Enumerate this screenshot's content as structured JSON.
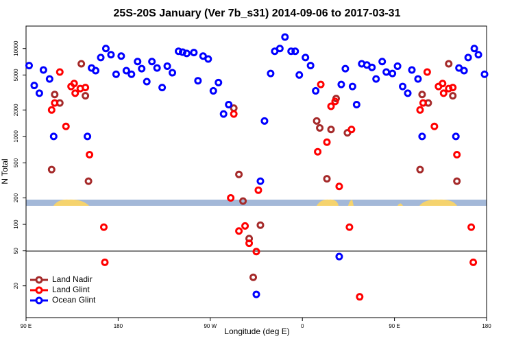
{
  "chart_data": {
    "type": "scatter",
    "title": "25S-20S January (Ver 7b_s31)   2014-09-06 to 2017-03-31",
    "x_label": "Longitude (deg E)",
    "y_label": "N Total",
    "xlim": [
      90,
      540
    ],
    "xticks": [
      {
        "value": 90,
        "label": "90 E"
      },
      180,
      {
        "value": 270,
        "label": "90 W"
      },
      {
        "value": 360,
        "label": "0"
      },
      {
        "value": 450,
        "label": "90 E"
      },
      {
        "value": 540,
        "label": "180"
      }
    ],
    "ylim": [
      8.7,
      18000
    ],
    "log_y": true,
    "yticks": [
      20,
      50,
      100,
      200,
      500,
      1000,
      2000,
      5000,
      10000
    ],
    "legend": "lower left",
    "series": [
      {
        "name": "Land Nadir",
        "color": "#a52a2a",
        "x": [
          115,
          118,
          123,
          144,
          148,
          151,
          293,
          298,
          302,
          308,
          312,
          319,
          374,
          377,
          384,
          388,
          393,
          404,
          475,
          477,
          483,
          503,
          507,
          511
        ],
        "values": [
          420,
          3000,
          2400,
          6700,
          2900,
          310,
          2100,
          370,
          184,
          69,
          25,
          98,
          1500,
          1250,
          330,
          1200,
          2700,
          1100,
          420,
          3000,
          2400,
          6700,
          2900,
          310
        ]
      },
      {
        "name": "Land Glint",
        "color": "#ff0000",
        "x": [
          115,
          118,
          123,
          129,
          134,
          137,
          138,
          143,
          148,
          152,
          166,
          167,
          290,
          293,
          298,
          304,
          308,
          315,
          317,
          375,
          378,
          384,
          388,
          392,
          396,
          406,
          408,
          416,
          475,
          478,
          482,
          489,
          493,
          497,
          498,
          503,
          507,
          511,
          525,
          527
        ],
        "values": [
          2000,
          2400,
          5400,
          1300,
          3700,
          4000,
          3100,
          3500,
          3600,
          620,
          93,
          37,
          200,
          1800,
          84,
          96,
          61,
          49,
          245,
          670,
          3900,
          860,
          2200,
          2500,
          270,
          93,
          1200,
          15,
          2000,
          2400,
          5400,
          1300,
          3700,
          4000,
          3100,
          3500,
          3600,
          620,
          93,
          37
        ]
      },
      {
        "name": "Ocean Glint",
        "color": "#0000ff",
        "x": [
          93,
          98,
          103,
          107,
          113,
          117,
          150,
          154,
          158,
          163,
          168,
          173,
          178,
          183,
          188,
          193,
          199,
          203,
          208,
          213,
          218,
          223,
          228,
          233,
          239,
          243,
          247,
          254,
          258,
          263,
          268,
          273,
          278,
          283,
          288,
          315,
          319,
          323,
          329,
          333,
          338,
          343,
          349,
          353,
          357,
          363,
          368,
          373,
          396,
          398,
          402,
          409,
          413,
          418,
          423,
          428,
          432,
          438,
          442,
          448,
          453,
          458,
          463,
          467,
          473,
          477,
          510,
          513,
          518,
          522,
          528,
          532,
          538
        ],
        "values": [
          6400,
          3800,
          3100,
          5700,
          4500,
          1000,
          1000,
          6000,
          5600,
          7900,
          10000,
          8500,
          5100,
          8200,
          5600,
          5100,
          7100,
          5900,
          4200,
          7100,
          6000,
          3600,
          6300,
          5300,
          9300,
          9100,
          8800,
          9000,
          4300,
          8200,
          7600,
          3300,
          4100,
          1800,
          2300,
          16,
          310,
          1500,
          5200,
          9300,
          10000,
          13500,
          9300,
          9300,
          5000,
          7900,
          6400,
          3300,
          43,
          3900,
          5900,
          3700,
          2300,
          6700,
          6500,
          6100,
          4500,
          7100,
          5400,
          5200,
          6300,
          3700,
          3100,
          5700,
          4500,
          1000,
          1000,
          6000,
          5600,
          7900,
          10000,
          8500,
          5100
        ]
      }
    ]
  }
}
